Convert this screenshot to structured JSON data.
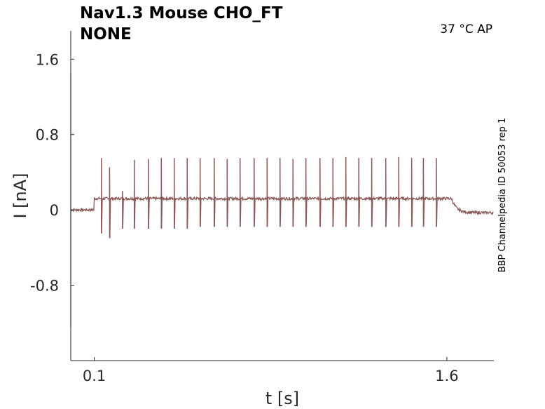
{
  "chart_data": {
    "type": "line",
    "title_line1": "Nav1.3  Mouse  CHO_FT",
    "title_line2": "NONE",
    "annotation": "37 °C  AP",
    "side_label": "BBP Channelpedia ID 50053 rep 1",
    "xlabel": "t [s]",
    "ylabel": "I [nA]",
    "x_ticks": [
      0.1,
      1.6
    ],
    "x_tick_labels": [
      "0.1",
      "1.6"
    ],
    "y_ticks": [
      1.6,
      0.8,
      0,
      -0.8
    ],
    "y_tick_labels": [
      "1.6",
      "0.8",
      "0",
      "-0.8"
    ],
    "xlim": [
      0,
      1.8
    ],
    "ylim": [
      -1.6,
      1.9
    ],
    "grid": false,
    "series": [
      {
        "color": "#8b5a5a",
        "baseline_pre": {
          "x": [
            0.0,
            0.1
          ],
          "y": 0.0
        },
        "baseline_stim": {
          "x": [
            0.1,
            1.62
          ],
          "y": 0.12
        },
        "baseline_post": {
          "x": [
            1.62,
            1.8
          ],
          "y": -0.03
        },
        "initial_transient": {
          "x": 0.0,
          "y_min": -1.25,
          "y_max": 1.45
        },
        "spike_times": [
          0.13,
          0.165,
          0.22,
          0.27,
          0.33,
          0.385,
          0.44,
          0.495,
          0.55,
          0.61,
          0.665,
          0.72,
          0.78,
          0.835,
          0.89,
          0.945,
          1.0,
          1.06,
          1.115,
          1.17,
          1.225,
          1.28,
          1.34,
          1.395,
          1.45,
          1.5,
          1.555
        ],
        "spike_peaks": [
          0.55,
          0.45,
          0.2,
          0.53,
          0.54,
          0.55,
          0.55,
          0.55,
          0.55,
          0.55,
          0.54,
          0.55,
          0.55,
          0.55,
          0.55,
          0.54,
          0.55,
          0.55,
          0.55,
          0.56,
          0.55,
          0.55,
          0.55,
          0.56,
          0.55,
          0.55,
          0.55
        ],
        "spike_troughs": [
          -0.25,
          -0.3,
          -0.2,
          -0.2,
          -0.2,
          -0.2,
          -0.2,
          -0.2,
          -0.18,
          -0.18,
          -0.18,
          -0.18,
          -0.18,
          -0.18,
          -0.18,
          -0.18,
          -0.18,
          -0.18,
          -0.18,
          -0.18,
          -0.18,
          -0.18,
          -0.18,
          -0.18,
          -0.18,
          -0.18,
          -0.18
        ]
      }
    ]
  }
}
